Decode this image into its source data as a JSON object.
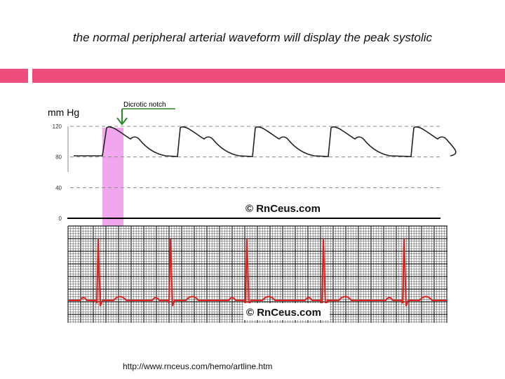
{
  "slide": {
    "title": "the normal peripheral arterial waveform will display the peak systolic",
    "source_url": "http://www.rnceus.com/hemo/artline.htm"
  },
  "figure": {
    "unit_label": "mm Hg",
    "annotation": "Dicrotic notch",
    "pressure_ticks": [
      {
        "label": "120",
        "value": 120
      },
      {
        "label": "80",
        "value": 80
      },
      {
        "label": "40",
        "value": 40
      },
      {
        "label": "0",
        "value": 0
      }
    ],
    "watermark_top": "© RnCeus.com",
    "watermark_bottom": "© RnCeus.com"
  },
  "colors": {
    "accent": "#ee4d7c",
    "highlight": "#f2a6ee",
    "ecg": "#e0201c",
    "arterial": "#222222"
  }
}
